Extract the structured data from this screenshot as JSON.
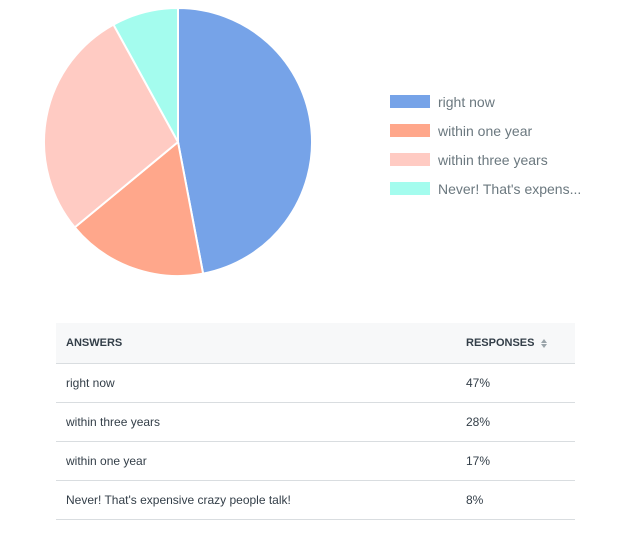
{
  "chart_data": {
    "type": "pie",
    "slices": [
      {
        "label": "right now",
        "value": 47,
        "color": "#76a3e8"
      },
      {
        "label": "within one year",
        "value": 17,
        "color": "#ffa78b"
      },
      {
        "label": "within three years",
        "value": 28,
        "color": "#ffcbc3"
      },
      {
        "label": "Never! That's expensive crazy people talk!",
        "value": 8,
        "color": "#a4fcee"
      }
    ],
    "legend": {
      "placement": "right",
      "items": [
        {
          "label": "right now",
          "color": "#76a3e8"
        },
        {
          "label": "within one year",
          "color": "#ffa78b"
        },
        {
          "label": "within three years",
          "color": "#ffcbc3"
        },
        {
          "label": "Never! That's expens...",
          "color": "#a4fcee"
        }
      ]
    }
  },
  "table": {
    "headers": {
      "answers": "ANSWERS",
      "responses": "RESPONSES"
    },
    "sort_icon": "sort-icon",
    "rows": [
      {
        "answer": "right now",
        "response": "47%"
      },
      {
        "answer": "within three years",
        "response": "28%"
      },
      {
        "answer": "within one year",
        "response": "17%"
      },
      {
        "answer": "Never! That's expensive crazy people talk!",
        "response": "8%"
      }
    ]
  }
}
